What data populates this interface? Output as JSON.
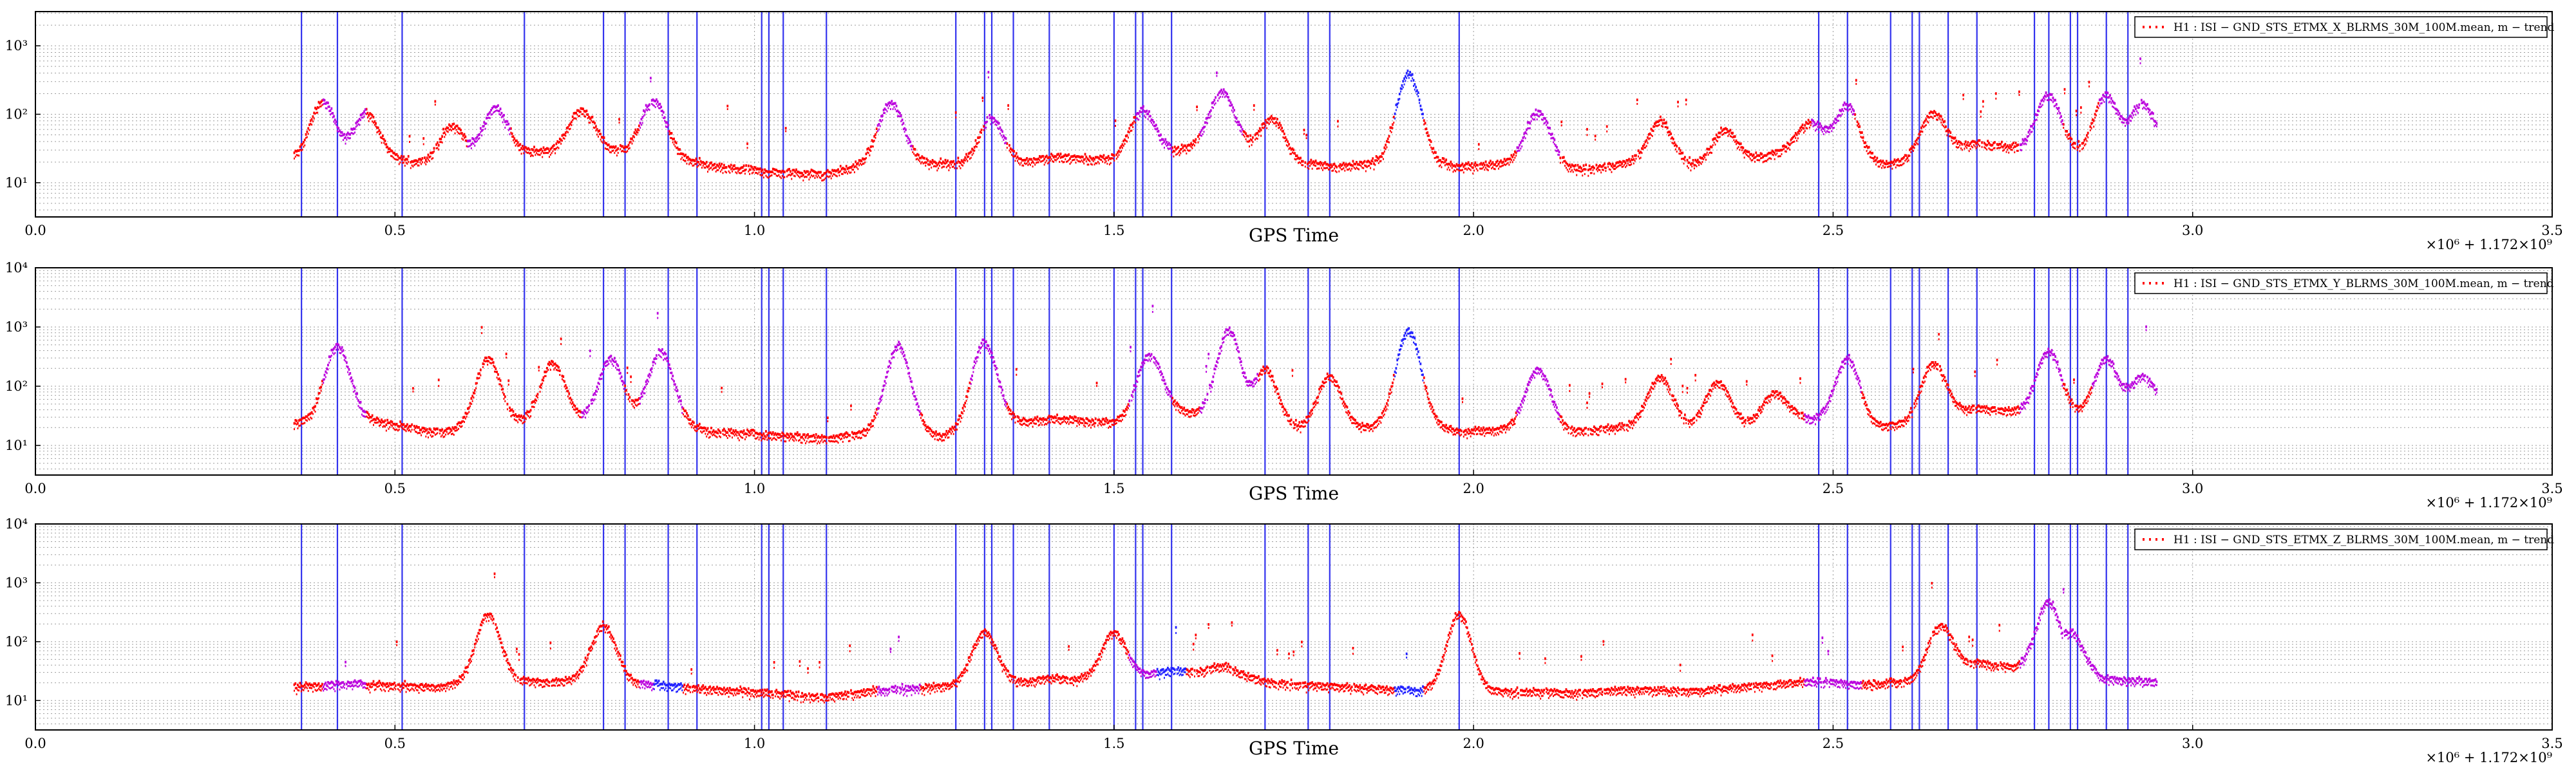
{
  "chart_data": [
    {
      "type": "scatter",
      "xlabel": "GPS Time",
      "x_offset_label": "×10⁶ + 1.172×10⁹",
      "xlim": [
        0.0,
        3.5
      ],
      "x_tick_labels": [
        "0.0",
        "0.5",
        "1.0",
        "1.5",
        "2.0",
        "2.5",
        "3.0",
        "3.5"
      ],
      "ylim_log10": [
        0.5,
        3.5
      ],
      "y_scale": "log",
      "y_tick_labels": [
        "10¹",
        "10²",
        "10³"
      ],
      "legend": {
        "placement": "top-right",
        "label": "H1 : ISI − GND_STS_ETMX_X_BLRMS_30M_100M.mean, m − trend"
      },
      "grid": true,
      "series_colors": [
        "#ff0000",
        "#bb00dd",
        "#2222ff"
      ],
      "vertical_line_color": "#3333ee",
      "vertical_lines_x": [
        0.37,
        0.42,
        0.51,
        0.68,
        0.79,
        0.82,
        0.88,
        0.92,
        1.01,
        1.02,
        1.04,
        1.1,
        1.28,
        1.32,
        1.33,
        1.36,
        1.41,
        1.5,
        1.53,
        1.54,
        1.58,
        1.71,
        1.77,
        1.8,
        1.98,
        2.48,
        2.52,
        2.58,
        2.61,
        2.62,
        2.66,
        2.7,
        2.78,
        2.8,
        2.83,
        2.84,
        2.88,
        2.91
      ],
      "data_x_range": [
        0.36,
        2.95
      ],
      "baseline_x": [
        0.36,
        0.45,
        0.55,
        0.62,
        0.7,
        0.78,
        0.86,
        0.94,
        1.02,
        1.1,
        1.18,
        1.26,
        1.34,
        1.42,
        1.5,
        1.58,
        1.66,
        1.74,
        1.82,
        1.9,
        1.98,
        2.06,
        2.14,
        2.22,
        2.3,
        2.38,
        2.46,
        2.54,
        2.62,
        2.7,
        2.78,
        2.86,
        2.95
      ],
      "baseline_y": [
        22,
        25,
        20,
        22,
        30,
        32,
        28,
        18,
        15,
        14,
        22,
        20,
        18,
        25,
        22,
        30,
        40,
        20,
        18,
        22,
        18,
        20,
        16,
        20,
        18,
        22,
        35,
        18,
        22,
        40,
        30,
        25,
        35
      ],
      "bumps": [
        [
          0.4,
          160
        ],
        [
          0.46,
          110
        ],
        [
          0.58,
          70
        ],
        [
          0.64,
          130
        ],
        [
          0.76,
          120
        ],
        [
          0.86,
          160
        ],
        [
          1.19,
          150
        ],
        [
          1.33,
          90
        ],
        [
          1.54,
          120
        ],
        [
          1.65,
          220
        ],
        [
          1.72,
          90
        ],
        [
          1.91,
          400
        ],
        [
          2.09,
          110
        ],
        [
          2.26,
          80
        ],
        [
          2.35,
          60
        ],
        [
          2.47,
          80
        ],
        [
          2.52,
          140
        ],
        [
          2.64,
          110
        ],
        [
          2.8,
          200
        ],
        [
          2.88,
          200
        ],
        [
          2.93,
          150
        ]
      ],
      "purple_ranges": [
        [
          0.4,
          0.46
        ],
        [
          0.6,
          0.66
        ],
        [
          0.84,
          0.88
        ],
        [
          1.17,
          1.22
        ],
        [
          1.32,
          1.35
        ],
        [
          1.53,
          1.58
        ],
        [
          1.62,
          1.68
        ],
        [
          2.06,
          2.12
        ],
        [
          2.47,
          2.53
        ],
        [
          2.76,
          2.82
        ],
        [
          2.87,
          2.95
        ]
      ],
      "blue_ranges": [
        [
          1.89,
          1.93
        ]
      ]
    },
    {
      "type": "scatter",
      "xlabel": "GPS Time",
      "x_offset_label": "×10⁶ + 1.172×10⁹",
      "xlim": [
        0.0,
        3.5
      ],
      "x_tick_labels": [
        "0.0",
        "0.5",
        "1.0",
        "1.5",
        "2.0",
        "2.5",
        "3.0",
        "3.5"
      ],
      "ylim_log10": [
        0.5,
        4.0
      ],
      "y_scale": "log",
      "y_tick_labels": [
        "10¹",
        "10²",
        "10³",
        "10⁴"
      ],
      "legend": {
        "placement": "top-right",
        "label": "H1 : ISI − GND_STS_ETMX_Y_BLRMS_30M_100M.mean, m − trend"
      },
      "grid": true,
      "series_colors": [
        "#ff0000",
        "#bb00dd",
        "#2222ff"
      ],
      "vertical_line_color": "#3333ee",
      "vertical_lines_x": [
        0.37,
        0.42,
        0.51,
        0.68,
        0.79,
        0.82,
        0.88,
        0.92,
        1.01,
        1.02,
        1.04,
        1.1,
        1.28,
        1.32,
        1.33,
        1.36,
        1.41,
        1.5,
        1.53,
        1.54,
        1.58,
        1.71,
        1.77,
        1.8,
        1.98,
        2.48,
        2.52,
        2.58,
        2.61,
        2.62,
        2.66,
        2.7,
        2.78,
        2.8,
        2.83,
        2.84,
        2.88,
        2.91
      ],
      "data_x_range": [
        0.36,
        2.95
      ],
      "baseline_x": [
        0.36,
        0.45,
        0.55,
        0.62,
        0.7,
        0.78,
        0.86,
        0.94,
        1.02,
        1.1,
        1.18,
        1.26,
        1.34,
        1.42,
        1.5,
        1.58,
        1.66,
        1.74,
        1.82,
        1.9,
        1.98,
        2.06,
        2.14,
        2.22,
        2.3,
        2.38,
        2.46,
        2.54,
        2.62,
        2.7,
        2.78,
        2.86,
        2.95
      ],
      "baseline_y": [
        25,
        30,
        18,
        20,
        28,
        25,
        30,
        18,
        16,
        14,
        18,
        15,
        25,
        30,
        25,
        40,
        30,
        20,
        18,
        25,
        18,
        20,
        18,
        22,
        20,
        22,
        30,
        20,
        25,
        45,
        35,
        30,
        50
      ],
      "bumps": [
        [
          0.42,
          500
        ],
        [
          0.63,
          300
        ],
        [
          0.72,
          250
        ],
        [
          0.8,
          300
        ],
        [
          0.87,
          400
        ],
        [
          1.2,
          500
        ],
        [
          1.32,
          600
        ],
        [
          1.55,
          350
        ],
        [
          1.66,
          900
        ],
        [
          1.71,
          200
        ],
        [
          1.8,
          150
        ],
        [
          1.91,
          900
        ],
        [
          2.09,
          200
        ],
        [
          2.26,
          150
        ],
        [
          2.34,
          120
        ],
        [
          2.42,
          80
        ],
        [
          2.52,
          300
        ],
        [
          2.64,
          250
        ],
        [
          2.8,
          400
        ],
        [
          2.88,
          300
        ],
        [
          2.93,
          150
        ]
      ],
      "purple_ranges": [
        [
          0.4,
          0.46
        ],
        [
          0.76,
          0.82
        ],
        [
          0.84,
          0.9
        ],
        [
          1.17,
          1.23
        ],
        [
          1.3,
          1.35
        ],
        [
          1.52,
          1.58
        ],
        [
          1.62,
          1.7
        ],
        [
          2.06,
          2.12
        ],
        [
          2.46,
          2.54
        ],
        [
          2.76,
          2.82
        ],
        [
          2.86,
          2.95
        ]
      ],
      "blue_ranges": [
        [
          1.89,
          1.93
        ]
      ]
    },
    {
      "type": "scatter",
      "xlabel": "GPS Time",
      "x_offset_label": "×10⁶ + 1.172×10⁹",
      "xlim": [
        0.0,
        3.5
      ],
      "x_tick_labels": [
        "0.0",
        "0.5",
        "1.0",
        "1.5",
        "2.0",
        "2.5",
        "3.0",
        "3.5"
      ],
      "ylim_log10": [
        0.5,
        4.0
      ],
      "y_scale": "log",
      "y_tick_labels": [
        "10¹",
        "10²",
        "10³",
        "10⁴"
      ],
      "legend": {
        "placement": "top-right",
        "label": "H1 : ISI − GND_STS_ETMX_Z_BLRMS_30M_100M.mean, m − trend"
      },
      "grid": true,
      "series_colors": [
        "#ff0000",
        "#bb00dd",
        "#2222ff"
      ],
      "vertical_line_color": "#3333ee",
      "vertical_lines_x": [
        0.37,
        0.42,
        0.51,
        0.68,
        0.79,
        0.82,
        0.88,
        0.92,
        1.01,
        1.02,
        1.04,
        1.1,
        1.28,
        1.32,
        1.33,
        1.36,
        1.41,
        1.5,
        1.53,
        1.54,
        1.58,
        1.71,
        1.77,
        1.8,
        1.98,
        2.48,
        2.52,
        2.58,
        2.61,
        2.62,
        2.66,
        2.7,
        2.78,
        2.8,
        2.83,
        2.84,
        2.88,
        2.91
      ],
      "data_x_range": [
        0.36,
        2.95
      ],
      "baseline_x": [
        0.36,
        0.45,
        0.55,
        0.62,
        0.7,
        0.78,
        0.86,
        0.94,
        1.02,
        1.1,
        1.18,
        1.26,
        1.34,
        1.42,
        1.5,
        1.58,
        1.66,
        1.74,
        1.82,
        1.9,
        1.98,
        2.06,
        2.14,
        2.22,
        2.3,
        2.38,
        2.46,
        2.54,
        2.62,
        2.7,
        2.78,
        2.86,
        2.95
      ],
      "baseline_y": [
        18,
        20,
        18,
        20,
        22,
        22,
        20,
        16,
        14,
        12,
        16,
        18,
        20,
        25,
        22,
        35,
        28,
        20,
        18,
        16,
        14,
        15,
        14,
        16,
        15,
        18,
        22,
        20,
        22,
        45,
        35,
        25,
        22
      ],
      "bumps": [
        [
          0.63,
          300
        ],
        [
          0.79,
          200
        ],
        [
          1.32,
          150
        ],
        [
          1.5,
          150
        ],
        [
          1.65,
          40
        ],
        [
          1.98,
          300
        ],
        [
          2.65,
          200
        ],
        [
          2.8,
          500
        ],
        [
          2.83,
          150
        ]
      ],
      "purple_ranges": [
        [
          0.4,
          0.46
        ],
        [
          0.84,
          0.9
        ],
        [
          1.17,
          1.23
        ],
        [
          1.52,
          1.6
        ],
        [
          2.46,
          2.54
        ],
        [
          2.76,
          2.95
        ]
      ],
      "blue_ranges": [
        [
          0.86,
          0.9
        ],
        [
          1.56,
          1.6
        ],
        [
          1.89,
          1.93
        ]
      ]
    }
  ]
}
